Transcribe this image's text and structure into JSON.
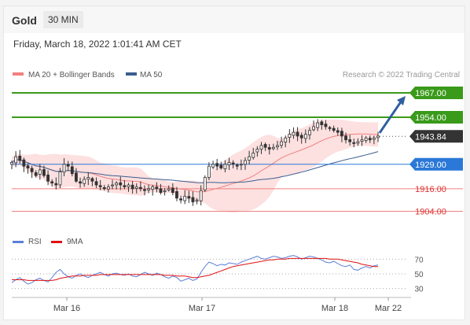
{
  "header": {
    "symbol": "Gold",
    "timeframe": "30 MIN",
    "timestamp": "Friday, March 18, 2022 1:01:41 AM CET"
  },
  "legend": {
    "ma_bb": "MA 20 + Bollinger Bands",
    "ma50": "MA 50",
    "credit": "Research © 2022 Trading Central",
    "rsi": "RSI",
    "ma9": "9MA"
  },
  "colors": {
    "bb_fill": "#fde0e0",
    "ma20": "#f08080",
    "ma50": "#3a5f8f",
    "candle": "#333333",
    "resistance": "#3a9a1a",
    "support": "#2a78d8",
    "weak": "#f08080",
    "last": "#333333",
    "rsi": "#5b7fd8",
    "ma9": "#e01010",
    "arrow": "#2f5f9f"
  },
  "chart_data": {
    "type": "candlestick",
    "x_ticks": [
      "Mar 16",
      "Mar 17",
      "Mar 18",
      "Mar 22"
    ],
    "ylim": [
      1895,
      1972
    ],
    "levels": [
      {
        "value": "1967.00",
        "kind": "resistance"
      },
      {
        "value": "1954.00",
        "kind": "resistance"
      },
      {
        "value": "1943.84",
        "kind": "last"
      },
      {
        "value": "1929.00",
        "kind": "support"
      },
      {
        "value": "1916.00",
        "kind": "weak"
      },
      {
        "value": "1904.00",
        "kind": "weak"
      }
    ],
    "close_series": [
      1930,
      1933,
      1931,
      1928,
      1927,
      1925,
      1923,
      1926,
      1923,
      1920,
      1919,
      1918,
      1925,
      1929,
      1928,
      1924,
      1920,
      1919,
      1921,
      1922,
      1920,
      1918,
      1917,
      1916,
      1917,
      1918,
      1919,
      1918,
      1917,
      1918,
      1916,
      1917,
      1916,
      1915,
      1916,
      1917,
      1916,
      1914,
      1915,
      1916,
      1914,
      1911,
      1910,
      1912,
      1911,
      1909,
      1910,
      1915,
      1922,
      1928,
      1929,
      1928,
      1927,
      1929,
      1930,
      1929,
      1928,
      1929,
      1931,
      1933,
      1935,
      1937,
      1939,
      1938,
      1937,
      1938,
      1939,
      1941,
      1943,
      1945,
      1946,
      1944,
      1943,
      1945,
      1947,
      1949,
      1951,
      1950,
      1949,
      1948,
      1947,
      1946,
      1944,
      1942,
      1941,
      1940,
      1941,
      1942,
      1943,
      1942,
      1943,
      1944
    ],
    "rsi": {
      "ticks": [
        "70",
        "50",
        "30"
      ],
      "ylim": [
        20,
        80
      ],
      "rsi_series": [
        38,
        42,
        45,
        40,
        36,
        38,
        42,
        44,
        41,
        39,
        45,
        52,
        56,
        50,
        46,
        44,
        48,
        50,
        47,
        45,
        48,
        50,
        52,
        49,
        47,
        50,
        51,
        49,
        48,
        50,
        47,
        46,
        49,
        52,
        50,
        48,
        51,
        49,
        46,
        44,
        47,
        45,
        40,
        42,
        44,
        41,
        43,
        52,
        60,
        66,
        64,
        61,
        63,
        62,
        65,
        64,
        63,
        66,
        68,
        70,
        72,
        74,
        71,
        70,
        72,
        74,
        73,
        71,
        72,
        74,
        75,
        73,
        70,
        72,
        74,
        73,
        71,
        69,
        66,
        65,
        67,
        64,
        61,
        60,
        62,
        56,
        55,
        58,
        60,
        58,
        61,
        62
      ],
      "ma9_series": [
        42,
        42,
        42,
        42,
        41,
        41,
        41,
        41,
        41,
        41,
        41,
        42,
        44,
        45,
        46,
        47,
        47,
        47,
        48,
        48,
        48,
        48,
        49,
        49,
        49,
        49,
        49,
        49,
        49,
        49,
        49,
        49,
        49,
        49,
        49,
        49,
        49,
        49,
        48,
        48,
        48,
        47,
        47,
        47,
        46,
        45,
        45,
        46,
        47,
        48,
        50,
        52,
        54,
        56,
        58,
        60,
        61,
        62,
        63,
        64,
        65,
        66,
        67,
        68,
        69,
        69,
        70,
        70,
        70,
        71,
        71,
        71,
        71,
        71,
        71,
        71,
        71,
        71,
        71,
        70,
        70,
        70,
        69,
        68,
        67,
        66,
        65,
        63,
        62,
        61,
        60,
        60
      ]
    }
  }
}
